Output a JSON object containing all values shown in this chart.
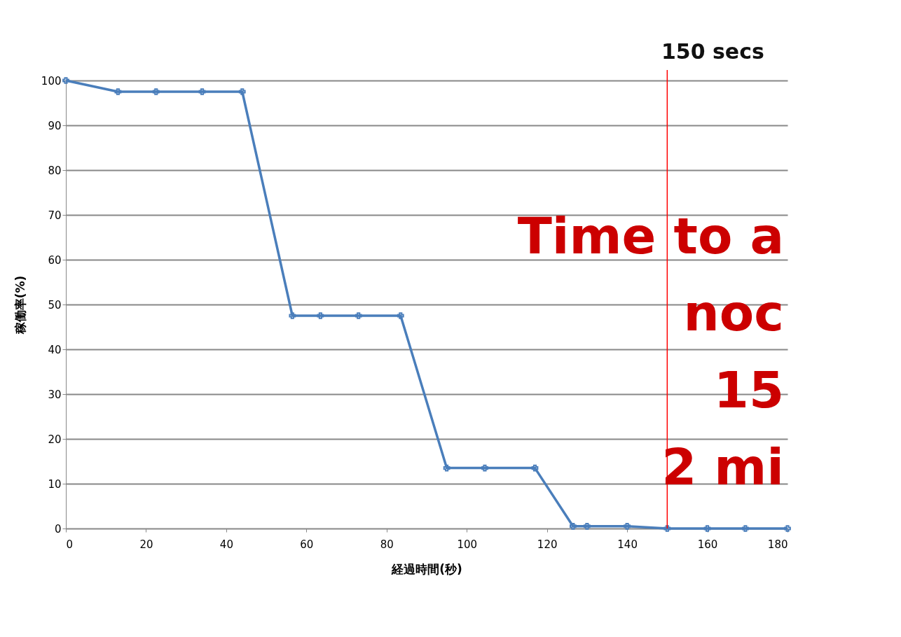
{
  "chart_data": {
    "type": "line",
    "xlabel": "経過時間(秒)",
    "ylabel": "稼働率(%)",
    "x": [
      0,
      13,
      22.5,
      34,
      44,
      56.5,
      63.5,
      73,
      83.5,
      95,
      104.5,
      117,
      126.5,
      130,
      140,
      150,
      160,
      169.5,
      180
    ],
    "series": [
      {
        "color": "#4a7ebb",
        "values": [
          100,
          97.5,
          97.5,
          97.5,
          97.5,
          47.5,
          47.5,
          47.5,
          47.5,
          13.5,
          13.5,
          13.5,
          0.5,
          0.5,
          0.5,
          0,
          0,
          0,
          0
        ]
      }
    ],
    "xlim": [
      0,
      180
    ],
    "xticks": [
      0,
      20,
      40,
      60,
      80,
      100,
      120,
      140,
      160,
      180
    ],
    "ylim": [
      0,
      100
    ],
    "yticks": [
      0,
      10,
      20,
      30,
      40,
      50,
      60,
      70,
      80,
      90,
      100
    ],
    "grid": "y",
    "marker": "cross",
    "line_style": "solid",
    "ref_lines": [
      {
        "axis": "x",
        "value": 150,
        "label": "150 secs",
        "color": "#ff0000"
      }
    ],
    "annotations": [
      "Time to a",
      "noc",
      "15",
      "2 mi"
    ]
  }
}
